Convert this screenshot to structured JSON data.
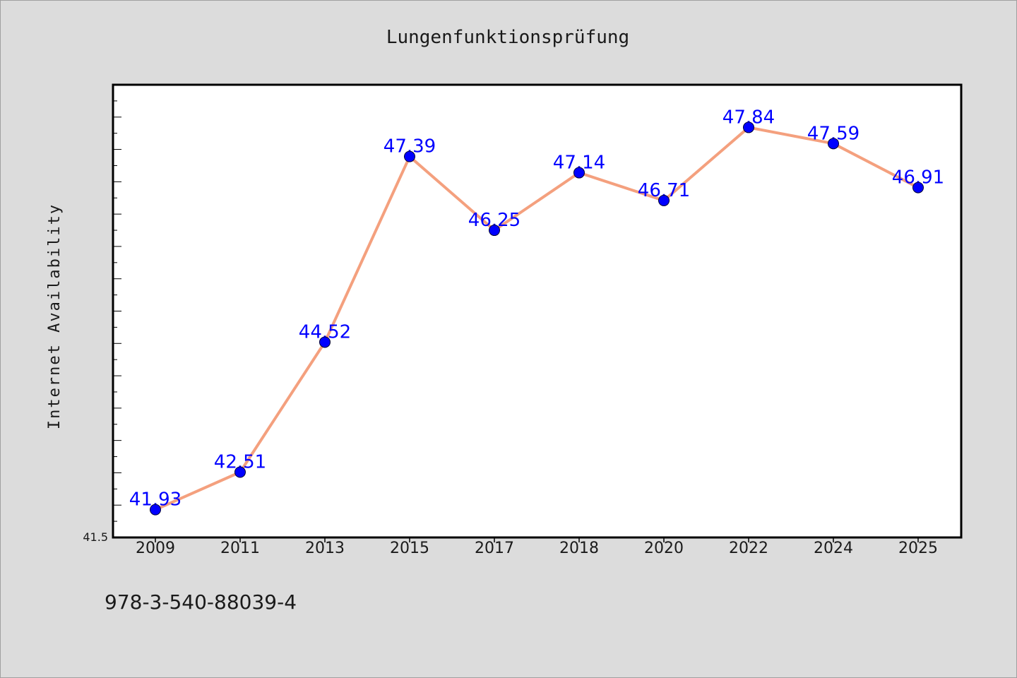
{
  "chart_data": {
    "type": "line",
    "title": "Lungenfunktionsprüfung",
    "xlabel": "",
    "ylabel": "Internet Availability",
    "categories": [
      "2009",
      "2011",
      "2013",
      "2015",
      "2017",
      "2018",
      "2020",
      "2022",
      "2024",
      "2025"
    ],
    "series": [
      {
        "values": [
          41.93,
          42.51,
          44.52,
          47.39,
          46.25,
          47.14,
          46.71,
          47.84,
          47.59,
          46.91
        ],
        "line_color": "#f4a07e",
        "marker_color": "#0000ff"
      }
    ],
    "ylim": [
      41.5,
      48.5
    ],
    "y_tick_labels": [
      "41.5"
    ],
    "data_label_color": "#0000ff",
    "grid": false,
    "legend": "none",
    "background": "#dcdcdc",
    "plot_background": "#ffffff"
  },
  "footer": {
    "isbn": "978-3-540-88039-4"
  }
}
